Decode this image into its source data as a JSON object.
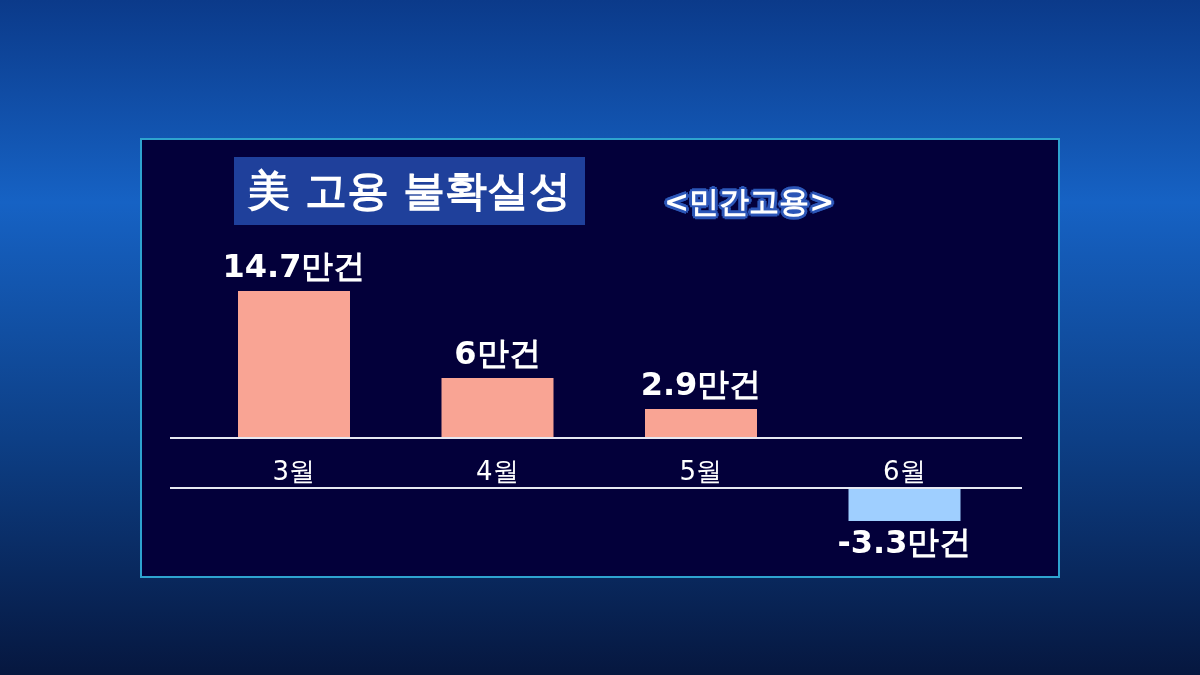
{
  "chart_data": [
    {
      "type": "bar",
      "title": "美 고용 불확실성",
      "subtitle": "<민간고용>",
      "categories": [
        "3월",
        "4월",
        "5월",
        "6월"
      ],
      "values": [
        14.7,
        6,
        2.9,
        null
      ],
      "colors": [
        "#f9a494",
        "#f9a494",
        "#f9a494",
        null
      ],
      "value_labels": [
        "14.7만건",
        "6만건",
        "2.9만건",
        null
      ],
      "tick_labels": "x"
    },
    {
      "type": "bar",
      "categories": [
        null,
        null,
        null,
        null
      ],
      "values": [
        null,
        null,
        null,
        -3.3
      ],
      "colors": [
        null,
        null,
        null,
        "#9fcfff"
      ],
      "value_labels": [
        null,
        null,
        null,
        "-3.3만건"
      ],
      "tick_labels": false
    }
  ]
}
